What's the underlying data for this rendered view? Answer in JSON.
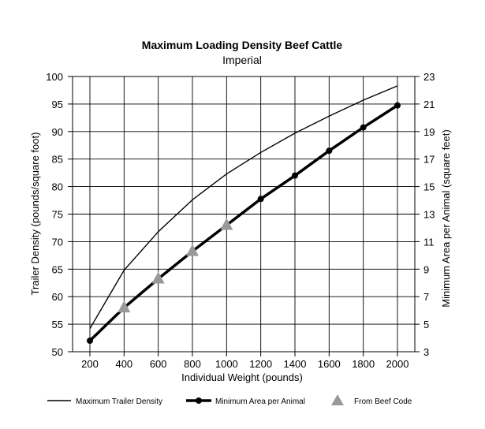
{
  "chart_data": {
    "type": "line",
    "title": "Maximum Loading Density Beef Cattle",
    "subtitle": "Imperial",
    "xlabel": "Individual Weight (pounds)",
    "ylabel": "Trailer Density (pounds/square foot)",
    "y2label": "Minimum Area per Animal (square feet)",
    "xlim": [
      200,
      2000
    ],
    "ylim": [
      50,
      100
    ],
    "y2lim": [
      3,
      23
    ],
    "x_ticks": [
      "200",
      "400",
      "600",
      "800",
      "1000",
      "1200",
      "1400",
      "1600",
      "1800",
      "2000"
    ],
    "y_ticks": [
      "50",
      "55",
      "60",
      "65",
      "70",
      "75",
      "80",
      "85",
      "90",
      "95",
      "100"
    ],
    "y2_ticks": [
      "3",
      "5",
      "7",
      "9",
      "11",
      "13",
      "15",
      "17",
      "19",
      "21",
      "23"
    ],
    "grid": true,
    "legend_position": "bottom",
    "series": [
      {
        "name": "Maximum Trailer Density",
        "axis": "left",
        "color": "#000000",
        "style": "thin-line",
        "x": [
          200,
          400,
          600,
          800,
          1000,
          1200,
          1400,
          1600,
          1800,
          2000
        ],
        "y": [
          54.2,
          64.8,
          71.8,
          77.6,
          82.3,
          86.2,
          89.7,
          92.8,
          95.7,
          98.3
        ]
      },
      {
        "name": "Minimum Area per Animal",
        "axis": "right",
        "color": "#000000",
        "style": "thick-line-dots",
        "x": [
          200,
          400,
          600,
          800,
          1000,
          1200,
          1400,
          1600,
          1800,
          2000
        ],
        "y": [
          3.8,
          6.2,
          8.3,
          10.3,
          12.2,
          14.1,
          15.8,
          17.6,
          19.3,
          20.9
        ]
      },
      {
        "name": "From Beef Code",
        "axis": "right",
        "color": "#999999",
        "style": "triangles",
        "x": [
          400,
          600,
          800,
          1000
        ],
        "y": [
          6.2,
          8.3,
          10.3,
          12.2
        ]
      }
    ]
  }
}
